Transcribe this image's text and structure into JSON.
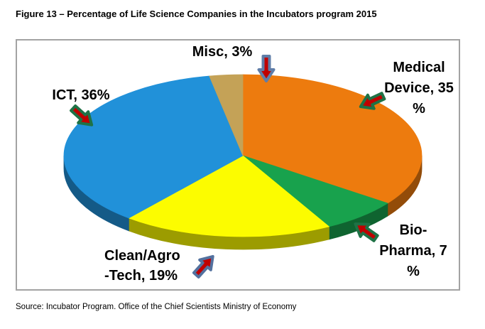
{
  "page": {
    "title": "Figure 13 – Percentage of Life Science Companies in the Incubators program 2015",
    "source": "Source: Incubator Program. Office of the Chief Scientists Ministry of Economy"
  },
  "chart_data": {
    "type": "pie",
    "style": "3d-ellipse",
    "title": "Figure 13 – Percentage of Life Science Companies in the Incubators program 2015",
    "start_angle_deg": 0,
    "direction": "clockwise",
    "legend_position": "none (callout labels with arrows)",
    "slices": [
      {
        "label": "Medical Device",
        "value": 35,
        "color": "#ED7B0E"
      },
      {
        "label": "Bio-Pharma",
        "value": 7,
        "color": "#18A24D"
      },
      {
        "label": "Clean/Agro-Tech",
        "value": 19,
        "color": "#FCFC00"
      },
      {
        "label": "ICT",
        "value": 36,
        "color": "#2191D9"
      },
      {
        "label": "Misc",
        "value": 3,
        "color": "#C4A257"
      }
    ]
  },
  "callouts": [
    {
      "id": "misc",
      "lines": [
        "Misc, 3%"
      ],
      "arrow_fill": "#C00000",
      "arrow_outline": "#5F7DA8"
    },
    {
      "id": "medical-device",
      "lines": [
        "Medical",
        "Device, 35",
        "%"
      ],
      "arrow_fill": "#C00000",
      "arrow_outline": "#1F7246"
    },
    {
      "id": "ict",
      "lines": [
        "ICT, 36%"
      ],
      "arrow_fill": "#C00000",
      "arrow_outline": "#1F7246"
    },
    {
      "id": "bio-pharma",
      "lines": [
        "Bio-",
        "Pharma, 7",
        "%"
      ],
      "arrow_fill": "#C00000",
      "arrow_outline": "#1F7246"
    },
    {
      "id": "clean-agro",
      "lines": [
        "Clean/Agro",
        "-Tech, 19%"
      ],
      "arrow_fill": "#C00000",
      "arrow_outline": "#53719F"
    }
  ]
}
